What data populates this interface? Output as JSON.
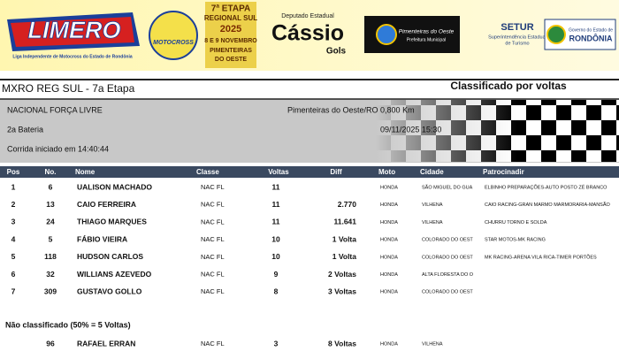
{
  "banner": {
    "league_logo": "LIMERO",
    "league_name": "Liga Independente de Motocross do Estado de Rondônia",
    "event_badge": "MOTOCROSS",
    "stage": [
      "7ª ETAPA",
      "REGIONAL SUL",
      "2025",
      "8 E 9 NOVEMBRO",
      "PIMENTEIRAS",
      "DO OESTE"
    ],
    "sponsor_role": "Deputado Estadual",
    "sponsor_name": "Cássio",
    "sponsor_surname": "Gols",
    "city_hall": "Pimenteiras do Oeste",
    "city_hall_sub": "Prefeitura Municipal",
    "setur": "SETUR",
    "setur_sub": [
      "Superintendência Estadual",
      "de Turismo"
    ],
    "government": "Governo do Estado de",
    "state": "RONDÔNIA"
  },
  "header": {
    "title": "MXRO REG SUL - 7a Etapa",
    "mode": "Classificado por voltas"
  },
  "info": {
    "category": "NACIONAL FORÇA LIVRE",
    "location": "Pimenteiras do Oeste/RO 0,800 Km",
    "heat": "2a Bateria",
    "datetime": "09/11/2025 15:30",
    "start": "Corrida iniciado em 14:40:44"
  },
  "table": {
    "columns": [
      "Pos",
      "No.",
      "Nome",
      "Classe",
      "Voltas",
      "Diff",
      "Moto",
      "Cidade",
      "Patrocinadir"
    ],
    "rows": [
      [
        "1",
        "6",
        "UALISON MACHADO",
        "NAC FL",
        "11",
        null,
        "HONDA",
        "SÃO MIGUEL DO GUA",
        "ELBINHO PREPARAÇÕES-AUTO POSTO ZÉ BRANCO"
      ],
      [
        "2",
        "13",
        "CAIO FERREIRA",
        "NAC FL",
        "11",
        "2.770",
        "HONDA",
        "VILHENA",
        "CAIO RACING-GRAN MARMO MARMORARIA-MANSÃO"
      ],
      [
        "3",
        "24",
        "THIAGO MARQUES",
        "NAC FL",
        "11",
        "11.641",
        "HONDA",
        "VILHENA",
        "CHURRU TORNO E SOLDA"
      ],
      [
        "4",
        "5",
        "FÁBIO VIEIRA",
        "NAC FL",
        "10",
        "1 Volta",
        "HONDA",
        "COLORADO DO OEST",
        "STAR MOTOS-MK RACING"
      ],
      [
        "5",
        "118",
        "HUDSON CARLOS",
        "NAC FL",
        "10",
        "1 Volta",
        "HONDA",
        "COLORADO DO OEST",
        "MK RACING-ARENA VILA RICA-TIMER PORTÕES"
      ],
      [
        "6",
        "32",
        "WILLIANS AZEVEDO",
        "NAC FL",
        "9",
        "2 Voltas",
        "HONDA",
        "ALTA FLORESTA DO O",
        null
      ],
      [
        "7",
        "309",
        "GUSTAVO GOLLO",
        "NAC FL",
        "8",
        "3 Voltas",
        "HONDA",
        "COLORADO DO OEST",
        null
      ]
    ],
    "unclassified_title": "Não classificado (50% = 5 Voltas)",
    "unclassified_rows": [
      [
        null,
        "96",
        "RAFAEL ERRAN",
        "NAC FL",
        "3",
        "8 Voltas",
        "HONDA",
        "VILHENA",
        null
      ]
    ]
  }
}
